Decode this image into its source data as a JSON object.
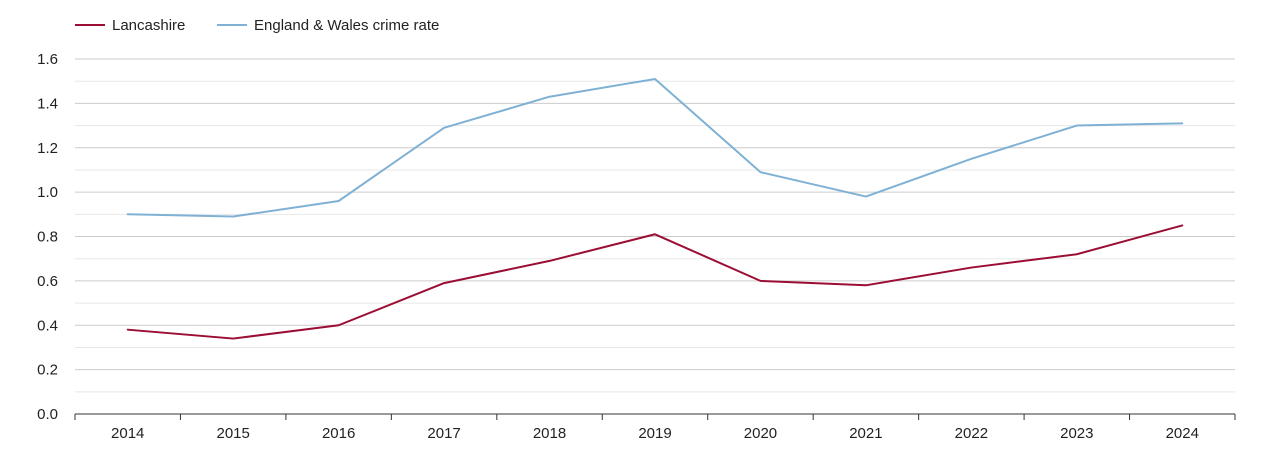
{
  "chart_data": {
    "type": "line",
    "title": "",
    "xlabel": "",
    "ylabel": "",
    "categories": [
      "2014",
      "2015",
      "2016",
      "2017",
      "2018",
      "2019",
      "2020",
      "2021",
      "2022",
      "2023",
      "2024"
    ],
    "ylim": [
      0,
      1.6
    ],
    "yticks": [
      "0.0",
      "0.2",
      "0.4",
      "0.6",
      "0.8",
      "1.0",
      "1.2",
      "1.4",
      "1.6"
    ],
    "grid": true,
    "legend_position": "top-left",
    "series": [
      {
        "name": "Lancashire",
        "color": "#9b0d33",
        "values": [
          0.38,
          0.34,
          0.4,
          0.59,
          0.69,
          0.81,
          0.6,
          0.58,
          0.66,
          0.72,
          0.85
        ]
      },
      {
        "name": "England & Wales crime rate",
        "color": "#7fb1d5",
        "values": [
          0.9,
          0.89,
          0.96,
          1.29,
          1.43,
          1.51,
          1.09,
          0.98,
          1.15,
          1.3,
          1.31
        ]
      }
    ]
  }
}
